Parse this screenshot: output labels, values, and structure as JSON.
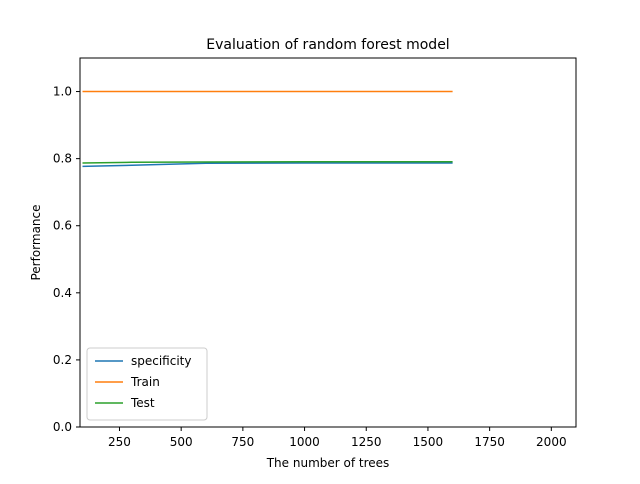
{
  "chart_data": {
    "type": "line",
    "title": "Evaluation of random forest model",
    "xlabel": "The number of trees",
    "ylabel": "Performance",
    "xlim": [
      90,
      2100
    ],
    "ylim": [
      0.0,
      1.1
    ],
    "xticks": [
      250,
      500,
      750,
      1000,
      1250,
      1500,
      1750,
      2000
    ],
    "yticks": [
      0.0,
      0.2,
      0.4,
      0.6,
      0.8,
      1.0
    ],
    "xtick_labels": [
      "250",
      "500",
      "750",
      "1000",
      "1250",
      "1500",
      "1750",
      "2000"
    ],
    "ytick_labels": [
      "0.0",
      "0.2",
      "0.4",
      "0.6",
      "0.8",
      "1.0"
    ],
    "grid": false,
    "legend_position": "lower-left",
    "series": [
      {
        "name": "specificity",
        "color": "#1f77b4",
        "x": [
          100,
          300,
          600,
          1000,
          1300,
          1600
        ],
        "y": [
          0.777,
          0.78,
          0.786,
          0.787,
          0.787,
          0.787
        ]
      },
      {
        "name": "Train",
        "color": "#ff7f0e",
        "x": [
          100,
          300,
          600,
          1000,
          1300,
          1600
        ],
        "y": [
          1.0,
          1.0,
          1.0,
          1.0,
          1.0,
          1.0
        ]
      },
      {
        "name": "Test",
        "color": "#2ca02c",
        "x": [
          100,
          300,
          600,
          1000,
          1300,
          1600
        ],
        "y": [
          0.787,
          0.789,
          0.79,
          0.791,
          0.791,
          0.791
        ]
      }
    ]
  }
}
